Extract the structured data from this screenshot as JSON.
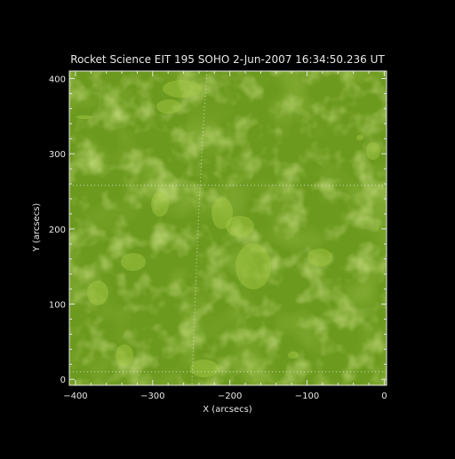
{
  "title": "Rocket Science EIT 195 SOHO  2-Jun-2007 16:34:50.236 UT",
  "xlabel": "X (arcsecs)",
  "ylabel": "Y (arcsecs)",
  "x_ticks": [
    {
      "value": -400,
      "label": "−400"
    },
    {
      "value": -300,
      "label": "−300"
    },
    {
      "value": -200,
      "label": "−200"
    },
    {
      "value": -100,
      "label": "−100"
    },
    {
      "value": 0,
      "label": "0"
    }
  ],
  "y_ticks": [
    {
      "value": 0,
      "label": "0"
    },
    {
      "value": 100,
      "label": "100"
    },
    {
      "value": 200,
      "label": "200"
    },
    {
      "value": 300,
      "label": "300"
    },
    {
      "value": 400,
      "label": "400"
    }
  ],
  "xlim": [
    -408,
    3
  ],
  "ylim": [
    -8,
    410
  ],
  "grid_y": [
    10,
    258
  ],
  "colors": {
    "background": "#000000",
    "image_base": "#6c9a1e",
    "image_dark": "#5a8a16",
    "image_bright": "#a8cc46",
    "axes": "#e8e8e8"
  }
}
